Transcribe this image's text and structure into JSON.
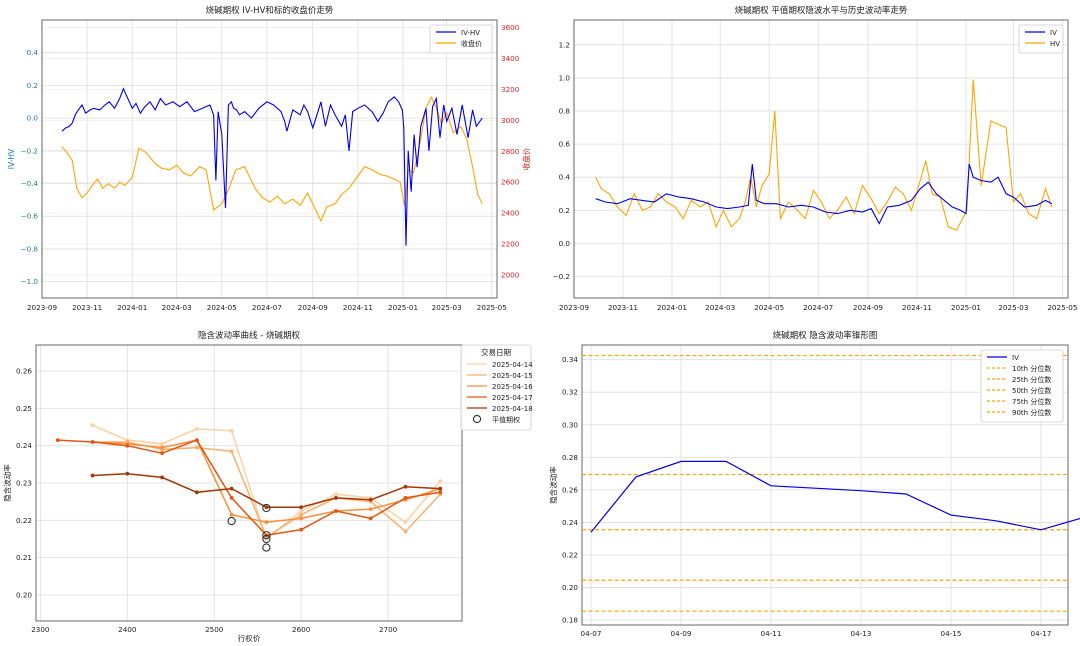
{
  "colors": {
    "blue": "#0000ee",
    "orange": "#ffa500",
    "red": "#dd2222",
    "steelblue": "#1f77b4",
    "grid": "#dddddd",
    "axis": "#444444",
    "smile": [
      "#fdd0a2",
      "#fdae6b",
      "#fd8d3c",
      "#e6550d",
      "#a63603"
    ]
  },
  "chart_data": [
    {
      "type": "line",
      "title": "烧碱期权 IV-HV和标的收盘价走势",
      "ylabel_left": "IV-HV",
      "ylabel_right": "收盘价",
      "xlim": [
        "2023-09-01",
        "2025-05-08"
      ],
      "ylim_left": [
        -1.1,
        0.6
      ],
      "ylim_right": [
        1850,
        3650
      ],
      "x_ticks": [
        "2023-09",
        "2023-11",
        "2024-01",
        "2024-03",
        "2024-05",
        "2024-07",
        "2024-09",
        "2024-11",
        "2025-01",
        "2025-03",
        "2025-05"
      ],
      "y_ticks_left": [
        "0.4",
        "0.2",
        "0.0",
        "−0.2",
        "−0.4",
        "−0.6",
        "−0.8",
        "−1.0"
      ],
      "y_ticks_right": [
        "3600",
        "3400",
        "3200",
        "3000",
        "2800",
        "2600",
        "2400",
        "2200",
        "2000"
      ],
      "legend": {
        "position": "upper right",
        "entries": [
          "IV-HV",
          "收盘价"
        ]
      },
      "grid": true,
      "series": [
        {
          "name": "IV-HV",
          "axis": "left",
          "x": [
            "2023-09-28",
            "2023-10-03",
            "2023-10-08",
            "2023-10-12",
            "2023-10-16",
            "2023-10-20",
            "2023-10-25",
            "2023-10-30",
            "2023-11-05",
            "2023-11-10",
            "2023-11-18",
            "2023-11-25",
            "2023-12-01",
            "2023-12-08",
            "2023-12-15",
            "2023-12-20",
            "2023-12-24",
            "2024-01-01",
            "2024-01-06",
            "2024-01-12",
            "2024-01-18",
            "2024-01-25",
            "2024-02-01",
            "2024-02-08",
            "2024-02-15",
            "2024-02-25",
            "2024-03-05",
            "2024-03-15",
            "2024-03-25",
            "2024-04-05",
            "2024-04-15",
            "2024-04-20",
            "2024-04-23",
            "2024-04-26",
            "2024-05-01",
            "2024-05-06",
            "2024-05-10",
            "2024-05-14",
            "2024-05-17",
            "2024-05-21",
            "2024-05-25",
            "2024-06-01",
            "2024-06-10",
            "2024-06-20",
            "2024-07-01",
            "2024-07-10",
            "2024-07-20",
            "2024-07-25",
            "2024-07-28",
            "2024-08-05",
            "2024-08-15",
            "2024-08-20",
            "2024-08-25",
            "2024-09-01",
            "2024-09-08",
            "2024-09-12",
            "2024-09-18",
            "2024-09-25",
            "2024-10-01",
            "2024-10-10",
            "2024-10-15",
            "2024-10-20",
            "2024-10-25",
            "2024-11-01",
            "2024-11-10",
            "2024-11-20",
            "2024-11-28",
            "2024-12-05",
            "2024-12-12",
            "2024-12-20",
            "2024-12-26",
            "2024-12-31",
            "2025-01-02",
            "2025-01-05",
            "2025-01-08",
            "2025-01-12",
            "2025-01-16",
            "2025-01-20",
            "2025-01-25",
            "2025-02-01",
            "2025-02-05",
            "2025-02-10",
            "2025-02-15",
            "2025-02-20",
            "2025-02-25",
            "2025-03-01",
            "2025-03-08",
            "2025-03-15",
            "2025-03-22",
            "2025-03-30",
            "2025-04-05",
            "2025-04-10",
            "2025-04-18"
          ],
          "values": [
            -0.08,
            -0.06,
            -0.05,
            -0.03,
            0.02,
            0.05,
            0.08,
            0.03,
            0.05,
            0.06,
            0.05,
            0.08,
            0.1,
            0.06,
            0.12,
            0.18,
            0.14,
            0.06,
            0.09,
            0.03,
            0.07,
            0.1,
            0.05,
            0.12,
            0.08,
            0.1,
            0.07,
            0.1,
            0.04,
            0.06,
            0.08,
            0.02,
            -0.38,
            0.04,
            -0.1,
            -0.55,
            0.08,
            0.1,
            0.06,
            0.05,
            0.02,
            0.04,
            0.0,
            0.06,
            0.1,
            0.08,
            0.04,
            -0.02,
            -0.08,
            0.05,
            0.02,
            0.08,
            0.04,
            -0.06,
            0.04,
            0.1,
            -0.05,
            0.08,
            0.02,
            -0.05,
            0.02,
            -0.2,
            0.04,
            0.06,
            0.08,
            0.04,
            -0.02,
            0.03,
            0.1,
            0.13,
            0.1,
            0.05,
            -0.06,
            -0.78,
            -0.2,
            -0.45,
            -0.1,
            -0.3,
            -0.05,
            0.06,
            -0.2,
            0.07,
            0.12,
            -0.12,
            0.08,
            -0.02,
            0.06,
            -0.1,
            0.08,
            -0.12,
            0.05,
            -0.05,
            0.0
          ]
        },
        {
          "name": "收盘价",
          "axis": "right",
          "x": [
            "2023-09-28",
            "2023-10-05",
            "2023-10-12",
            "2023-10-18",
            "2023-10-25",
            "2023-11-01",
            "2023-11-08",
            "2023-11-15",
            "2023-11-22",
            "2023-11-30",
            "2023-12-08",
            "2023-12-15",
            "2023-12-22",
            "2024-01-01",
            "2024-01-10",
            "2024-01-20",
            "2024-02-01",
            "2024-02-10",
            "2024-02-20",
            "2024-03-01",
            "2024-03-10",
            "2024-03-20",
            "2024-04-01",
            "2024-04-10",
            "2024-04-20",
            "2024-05-01",
            "2024-05-10",
            "2024-05-20",
            "2024-06-01",
            "2024-06-15",
            "2024-06-25",
            "2024-07-05",
            "2024-07-15",
            "2024-07-25",
            "2024-08-05",
            "2024-08-15",
            "2024-08-25",
            "2024-09-05",
            "2024-09-12",
            "2024-09-20",
            "2024-10-01",
            "2024-10-10",
            "2024-10-20",
            "2024-11-01",
            "2024-11-10",
            "2024-11-20",
            "2024-12-01",
            "2024-12-10",
            "2024-12-20",
            "2024-12-28",
            "2025-01-03",
            "2025-01-08",
            "2025-01-15",
            "2025-01-22",
            "2025-02-01",
            "2025-02-08",
            "2025-02-15",
            "2025-02-22",
            "2025-03-01",
            "2025-03-10",
            "2025-03-20",
            "2025-03-28",
            "2025-04-05",
            "2025-04-12",
            "2025-04-18"
          ],
          "values": [
            2830,
            2790,
            2740,
            2560,
            2500,
            2530,
            2580,
            2620,
            2560,
            2590,
            2560,
            2600,
            2580,
            2630,
            2820,
            2790,
            2720,
            2690,
            2680,
            2710,
            2660,
            2640,
            2700,
            2680,
            2420,
            2460,
            2550,
            2680,
            2700,
            2560,
            2500,
            2470,
            2510,
            2460,
            2490,
            2450,
            2530,
            2420,
            2350,
            2440,
            2460,
            2520,
            2560,
            2640,
            2700,
            2680,
            2650,
            2640,
            2620,
            2600,
            2450,
            2680,
            2660,
            2800,
            3080,
            3150,
            3080,
            2980,
            3050,
            2920,
            2960,
            2880,
            2700,
            2520,
            2460
          ]
        }
      ]
    },
    {
      "type": "line",
      "title": "烧碱期权 平值期权隐波水平与历史波动率走势",
      "xlim": [
        "2023-09-01",
        "2025-05-08"
      ],
      "ylim": [
        -0.33,
        1.35
      ],
      "x_ticks": [
        "2023-09",
        "2023-11",
        "2024-01",
        "2024-03",
        "2024-05",
        "2024-07",
        "2024-09",
        "2024-11",
        "2025-01",
        "2025-03",
        "2025-05"
      ],
      "y_ticks": [
        "1.2",
        "1.0",
        "0.8",
        "0.6",
        "0.4",
        "0.2",
        "0.0",
        "−0.2"
      ],
      "legend": {
        "position": "upper right",
        "entries": [
          "IV",
          "HV"
        ]
      },
      "grid": true,
      "series": [
        {
          "name": "IV",
          "x": [
            "2023-09-28",
            "2023-10-10",
            "2023-10-25",
            "2023-11-10",
            "2023-11-25",
            "2023-12-10",
            "2023-12-25",
            "2024-01-10",
            "2024-01-25",
            "2024-02-10",
            "2024-02-25",
            "2024-03-10",
            "2024-03-25",
            "2024-04-05",
            "2024-04-10",
            "2024-04-15",
            "2024-04-25",
            "2024-05-10",
            "2024-05-25",
            "2024-06-10",
            "2024-06-25",
            "2024-07-10",
            "2024-07-25",
            "2024-08-10",
            "2024-08-25",
            "2024-09-05",
            "2024-09-15",
            "2024-09-25",
            "2024-10-10",
            "2024-10-25",
            "2024-11-05",
            "2024-11-15",
            "2024-11-25",
            "2024-12-05",
            "2024-12-15",
            "2024-12-25",
            "2025-01-01",
            "2025-01-05",
            "2025-01-10",
            "2025-01-20",
            "2025-02-01",
            "2025-02-10",
            "2025-02-20",
            "2025-03-01",
            "2025-03-15",
            "2025-03-30",
            "2025-04-10",
            "2025-04-18"
          ],
          "values": [
            0.27,
            0.25,
            0.24,
            0.27,
            0.26,
            0.25,
            0.3,
            0.28,
            0.27,
            0.25,
            0.22,
            0.21,
            0.22,
            0.23,
            0.48,
            0.26,
            0.24,
            0.24,
            0.22,
            0.23,
            0.22,
            0.19,
            0.18,
            0.2,
            0.19,
            0.21,
            0.12,
            0.22,
            0.23,
            0.26,
            0.33,
            0.37,
            0.3,
            0.26,
            0.22,
            0.2,
            0.18,
            0.48,
            0.4,
            0.38,
            0.37,
            0.4,
            0.3,
            0.28,
            0.22,
            0.23,
            0.26,
            0.24
          ]
        },
        {
          "name": "HV",
          "x": [
            "2023-09-28",
            "2023-10-05",
            "2023-10-15",
            "2023-10-25",
            "2023-11-05",
            "2023-11-15",
            "2023-11-25",
            "2023-12-05",
            "2023-12-15",
            "2023-12-25",
            "2024-01-05",
            "2024-01-15",
            "2024-01-25",
            "2024-02-05",
            "2024-02-15",
            "2024-02-25",
            "2024-03-05",
            "2024-03-15",
            "2024-03-25",
            "2024-04-01",
            "2024-04-08",
            "2024-04-15",
            "2024-04-22",
            "2024-05-01",
            "2024-05-08",
            "2024-05-15",
            "2024-05-25",
            "2024-06-05",
            "2024-06-15",
            "2024-06-25",
            "2024-07-05",
            "2024-07-15",
            "2024-07-25",
            "2024-08-05",
            "2024-08-15",
            "2024-08-25",
            "2024-09-05",
            "2024-09-15",
            "2024-09-25",
            "2024-10-05",
            "2024-10-15",
            "2024-10-25",
            "2024-11-05",
            "2024-11-12",
            "2024-11-20",
            "2024-11-30",
            "2024-12-10",
            "2024-12-20",
            "2024-12-28",
            "2025-01-02",
            "2025-01-10",
            "2025-01-20",
            "2025-02-01",
            "2025-02-10",
            "2025-02-20",
            "2025-03-01",
            "2025-03-10",
            "2025-03-20",
            "2025-03-30",
            "2025-04-10",
            "2025-04-18"
          ],
          "values": [
            0.4,
            0.33,
            0.3,
            0.22,
            0.17,
            0.3,
            0.2,
            0.22,
            0.3,
            0.25,
            0.22,
            0.15,
            0.26,
            0.22,
            0.25,
            0.1,
            0.2,
            0.1,
            0.15,
            0.25,
            0.4,
            0.22,
            0.35,
            0.42,
            0.8,
            0.15,
            0.25,
            0.2,
            0.15,
            0.32,
            0.25,
            0.15,
            0.2,
            0.28,
            0.18,
            0.35,
            0.27,
            0.18,
            0.25,
            0.34,
            0.3,
            0.2,
            0.38,
            0.5,
            0.3,
            0.28,
            0.1,
            0.08,
            0.15,
            0.2,
            0.99,
            0.35,
            0.74,
            0.72,
            0.7,
            0.25,
            0.3,
            0.18,
            0.15,
            0.33,
            0.22
          ]
        }
      ]
    },
    {
      "type": "line",
      "title": "隐含波动率曲线 - 烧碱期权",
      "xlabel": "行权价",
      "ylabel": "隐含波动率",
      "xlim": [
        2295,
        2785
      ],
      "ylim": [
        0.193,
        0.267
      ],
      "x_ticks": [
        "2300",
        "2400",
        "2500",
        "2600",
        "2700"
      ],
      "y_ticks": [
        "0.26",
        "0.25",
        "0.24",
        "0.23",
        "0.22",
        "0.21",
        "0.20"
      ],
      "legend": {
        "position": "upper right",
        "title": "交易日期",
        "entries": [
          "2025-04-14",
          "2025-04-15",
          "2025-04-16",
          "2025-04-17",
          "2025-04-18",
          "平值期权"
        ]
      },
      "grid": true,
      "series": [
        {
          "name": "2025-04-14",
          "x": [
            2360,
            2400,
            2440,
            2480,
            2520,
            2560,
            2600,
            2640,
            2680,
            2720,
            2760
          ],
          "values": [
            0.2455,
            0.2415,
            0.2405,
            0.2445,
            0.244,
            0.215,
            0.2225,
            0.227,
            0.226,
            0.2195,
            0.2305
          ]
        },
        {
          "name": "2025-04-15",
          "x": [
            2360,
            2400,
            2440,
            2480,
            2520,
            2560,
            2600,
            2640,
            2680,
            2720,
            2760
          ],
          "values": [
            0.241,
            0.241,
            0.239,
            0.2395,
            0.2385,
            0.2155,
            0.2215,
            0.226,
            0.225,
            0.217,
            0.227
          ]
        },
        {
          "name": "2025-04-16",
          "x": [
            2360,
            2400,
            2440,
            2480,
            2520,
            2560,
            2600,
            2640,
            2680,
            2720,
            2760
          ],
          "values": [
            0.241,
            0.2405,
            0.2395,
            0.2415,
            0.2215,
            0.2195,
            0.2205,
            0.2225,
            0.223,
            0.2255,
            0.2285
          ]
        },
        {
          "name": "2025-04-17",
          "x": [
            2320,
            2360,
            2400,
            2440,
            2480,
            2520,
            2560,
            2600,
            2640,
            2680,
            2720,
            2760
          ],
          "values": [
            0.2415,
            0.241,
            0.24,
            0.238,
            0.2415,
            0.226,
            0.216,
            0.2175,
            0.2225,
            0.2205,
            0.226,
            0.2275
          ]
        },
        {
          "name": "2025-04-18",
          "x": [
            2360,
            2400,
            2440,
            2480,
            2520,
            2560,
            2600,
            2640,
            2680,
            2720,
            2760
          ],
          "values": [
            0.232,
            0.2325,
            0.2315,
            0.2275,
            0.2285,
            0.2235,
            0.2235,
            0.226,
            0.2255,
            0.229,
            0.2285
          ]
        }
      ],
      "atm_points": [
        {
          "x": 2520,
          "y": 0.2198
        },
        {
          "x": 2560,
          "y": 0.2233
        },
        {
          "x": 2560,
          "y": 0.216
        },
        {
          "x": 2560,
          "y": 0.215
        },
        {
          "x": 2560,
          "y": 0.2127
        }
      ]
    },
    {
      "type": "line",
      "title": "烧碱期权 隐含波动率锥形图",
      "ylabel": "隐含波动率",
      "xlim": [
        -0.2,
        10.6
      ],
      "ylim": [
        0.177,
        0.349
      ],
      "x_ticks": [
        "04-07",
        "04-09",
        "04-11",
        "04-13",
        "04-15",
        "04-17"
      ],
      "y_ticks": [
        "0.34",
        "0.32",
        "0.30",
        "0.28",
        "0.26",
        "0.24",
        "0.22",
        "0.20",
        "0.18"
      ],
      "legend": {
        "position": "upper right",
        "entries": [
          "IV",
          "10th 分位数",
          "25th 分位数",
          "50th 分位数",
          "75th 分位数",
          "90th 分位数"
        ]
      },
      "grid": true,
      "series": [
        {
          "name": "IV",
          "x": [
            "04-07",
            "04-08",
            "04-09",
            "04-10",
            "04-11",
            "04-13",
            "04-14",
            "04-15",
            "04-16",
            "04-17",
            "04-18"
          ],
          "values": [
            0.234,
            0.268,
            0.2775,
            0.2775,
            0.2625,
            0.2595,
            0.2575,
            0.2445,
            0.241,
            0.2355,
            0.2435
          ]
        }
      ],
      "quantiles": [
        {
          "name": "10th 分位数",
          "value": 0.1855
        },
        {
          "name": "25th 分位数",
          "value": 0.2045
        },
        {
          "name": "50th 分位数",
          "value": 0.2355
        },
        {
          "name": "75th 分位数",
          "value": 0.2695
        },
        {
          "name": "90th 分位数",
          "value": 0.3425
        }
      ]
    }
  ]
}
